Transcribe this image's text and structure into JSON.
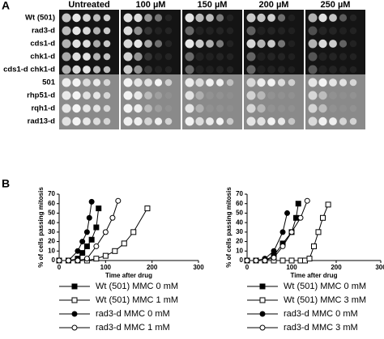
{
  "labels": {
    "a": "A",
    "b": "B"
  },
  "panel_a": {
    "columns": [
      "Untreated",
      "100 µM",
      "150 µM",
      "200 µM",
      "250 µM"
    ],
    "groups": [
      {
        "rows": [
          "Wt (501)",
          "rad3-d",
          "cds1-d",
          "chk1-d",
          "cds1-d chk1-d"
        ]
      },
      {
        "rows": [
          "501",
          "rhp51-d",
          "rqh1-d",
          "rad13-d"
        ]
      }
    ]
  },
  "chart_data": [
    {
      "type": "line",
      "xlabel": "Time after drug",
      "ylabel": "% of cells passing mitosis",
      "xlim": [
        0,
        300
      ],
      "xticks": [
        0,
        100,
        200,
        300
      ],
      "ylim": [
        0,
        70
      ],
      "yticks": [
        0,
        10,
        20,
        30,
        40,
        50,
        60,
        70
      ],
      "series": [
        {
          "name": "Wt (501) MMC 0 mM",
          "color": "#000",
          "marker": "filled-square",
          "x": [
            0,
            20,
            40,
            50,
            60,
            70,
            80,
            85
          ],
          "values": [
            0,
            0,
            2,
            8,
            15,
            22,
            35,
            55
          ]
        },
        {
          "name": "Wt (501) MMC 1 mM",
          "color": "#000",
          "marker": "open-square",
          "x": [
            0,
            20,
            40,
            60,
            80,
            100,
            120,
            140,
            160,
            190
          ],
          "values": [
            0,
            0,
            0,
            0,
            2,
            5,
            10,
            18,
            30,
            55
          ]
        },
        {
          "name": "rad3-d MMC 0 mM",
          "color": "#000",
          "marker": "filled-circle",
          "x": [
            0,
            20,
            40,
            50,
            60,
            65,
            70
          ],
          "values": [
            0,
            0,
            10,
            20,
            30,
            45,
            62
          ]
        },
        {
          "name": "rad3-d MMC 1 mM",
          "color": "#000",
          "marker": "open-circle",
          "x": [
            0,
            20,
            40,
            60,
            80,
            100,
            115,
            127
          ],
          "values": [
            0,
            0,
            0,
            2,
            15,
            30,
            45,
            63
          ]
        }
      ]
    },
    {
      "type": "line",
      "xlabel": "Time after drug",
      "ylabel": "% of cells passing mitosis",
      "xlim": [
        0,
        300
      ],
      "xticks": [
        0,
        100,
        200,
        300
      ],
      "ylim": [
        0,
        70
      ],
      "yticks": [
        0,
        10,
        20,
        30,
        40,
        50,
        60,
        70
      ],
      "series": [
        {
          "name": "Wt (501) MMC 0 mM",
          "color": "#000",
          "marker": "filled-square",
          "x": [
            0,
            20,
            40,
            60,
            80,
            100,
            110,
            115
          ],
          "values": [
            0,
            0,
            0,
            5,
            18,
            30,
            45,
            60
          ]
        },
        {
          "name": "Wt (501) MMC 3 mM",
          "color": "#000",
          "marker": "open-square",
          "x": [
            0,
            20,
            40,
            60,
            80,
            100,
            120,
            130,
            140,
            150,
            160,
            170,
            182
          ],
          "values": [
            0,
            0,
            0,
            0,
            0,
            0,
            0,
            0,
            2,
            15,
            30,
            45,
            59
          ]
        },
        {
          "name": "rad3-d MMC 0 mM",
          "color": "#000",
          "marker": "filled-circle",
          "x": [
            0,
            20,
            40,
            60,
            80,
            90
          ],
          "values": [
            0,
            0,
            2,
            10,
            30,
            50
          ]
        },
        {
          "name": "rad3-d MMC 3 mM",
          "color": "#000",
          "marker": "open-circle",
          "x": [
            0,
            20,
            40,
            60,
            80,
            100,
            120,
            135
          ],
          "values": [
            0,
            0,
            0,
            3,
            15,
            30,
            45,
            63
          ]
        }
      ]
    }
  ]
}
